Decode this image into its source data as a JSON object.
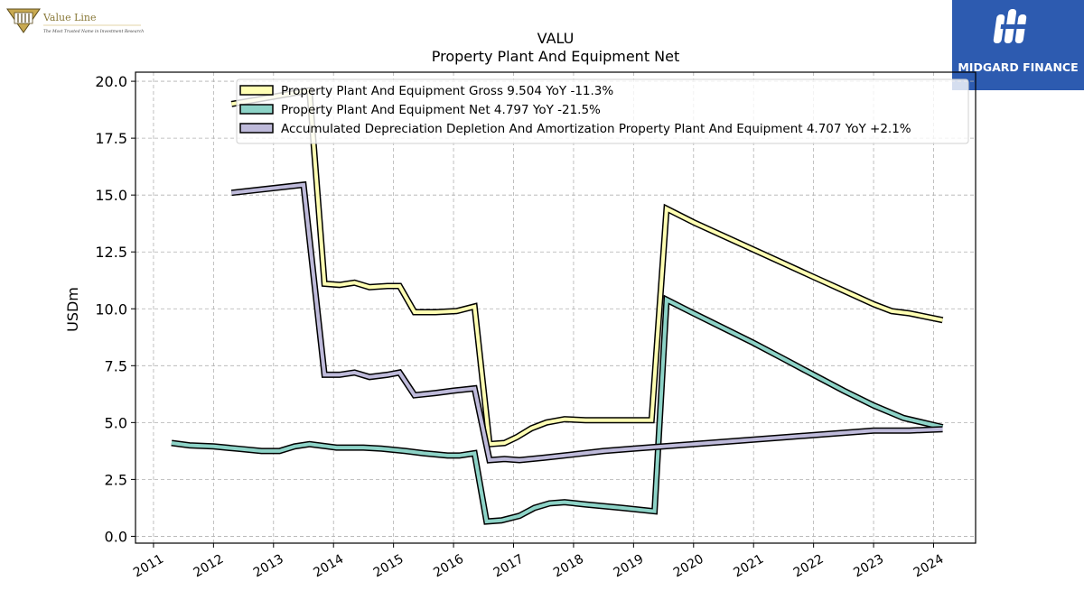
{
  "branding": {
    "valueline_name": "Value Line",
    "valueline_tagline": "The Most Trusted Name in Investment Research",
    "midgard_name": "MIDGARD FINANCE"
  },
  "chart_data": {
    "type": "line",
    "title": "VALU",
    "subtitle": "Property Plant And Equipment Net",
    "ylabel": "USDm",
    "xlabel": "",
    "xlim": [
      2010.7,
      2024.7
    ],
    "ylim": [
      -0.3,
      20.4
    ],
    "yticks": [
      0.0,
      2.5,
      5.0,
      7.5,
      10.0,
      12.5,
      15.0,
      17.5,
      20.0
    ],
    "ytick_labels": [
      "0.0",
      "2.5",
      "5.0",
      "7.5",
      "10.0",
      "12.5",
      "15.0",
      "17.5",
      "20.0"
    ],
    "xticks": [
      2011,
      2012,
      2013,
      2014,
      2015,
      2016,
      2017,
      2018,
      2019,
      2020,
      2021,
      2022,
      2023,
      2024
    ],
    "xtick_labels": [
      "2011",
      "2012",
      "2013",
      "2014",
      "2015",
      "2016",
      "2017",
      "2018",
      "2019",
      "2020",
      "2021",
      "2022",
      "2023",
      "2024"
    ],
    "grid": true,
    "legend_position": "top",
    "series": [
      {
        "name": "Property Plant And Equipment Gross",
        "legend_label": "Property Plant And Equipment Gross  9.504 YoY -11.3%",
        "color": "#ffffb3",
        "points": [
          [
            2012.3,
            19.0
          ],
          [
            2013.6,
            19.6
          ],
          [
            2013.85,
            11.1
          ],
          [
            2014.1,
            11.05
          ],
          [
            2014.35,
            11.15
          ],
          [
            2014.6,
            10.95
          ],
          [
            2014.9,
            11.0
          ],
          [
            2015.1,
            11.0
          ],
          [
            2015.35,
            9.85
          ],
          [
            2015.7,
            9.85
          ],
          [
            2016.05,
            9.9
          ],
          [
            2016.35,
            10.1
          ],
          [
            2016.6,
            4.05
          ],
          [
            2016.85,
            4.1
          ],
          [
            2017.05,
            4.35
          ],
          [
            2017.3,
            4.75
          ],
          [
            2017.55,
            5.0
          ],
          [
            2017.85,
            5.15
          ],
          [
            2018.2,
            5.1
          ],
          [
            2018.8,
            5.1
          ],
          [
            2019.3,
            5.1
          ],
          [
            2019.55,
            14.4
          ],
          [
            2020.0,
            13.8
          ],
          [
            2020.5,
            13.2
          ],
          [
            2021.0,
            12.6
          ],
          [
            2021.5,
            12.0
          ],
          [
            2022.0,
            11.4
          ],
          [
            2022.5,
            10.8
          ],
          [
            2023.0,
            10.2
          ],
          [
            2023.3,
            9.9
          ],
          [
            2023.6,
            9.8
          ],
          [
            2024.15,
            9.504
          ]
        ]
      },
      {
        "name": "Property Plant And Equipment Net",
        "legend_label": "Property Plant And Equipment Net  4.797 YoY -21.5%",
        "color": "#8dd3c7",
        "points": [
          [
            2011.3,
            4.1
          ],
          [
            2011.6,
            4.0
          ],
          [
            2012.0,
            3.95
          ],
          [
            2012.4,
            3.85
          ],
          [
            2012.8,
            3.75
          ],
          [
            2013.1,
            3.75
          ],
          [
            2013.35,
            3.95
          ],
          [
            2013.6,
            4.05
          ],
          [
            2013.9,
            3.95
          ],
          [
            2014.05,
            3.9
          ],
          [
            2014.5,
            3.9
          ],
          [
            2014.8,
            3.85
          ],
          [
            2015.2,
            3.75
          ],
          [
            2015.5,
            3.65
          ],
          [
            2015.9,
            3.55
          ],
          [
            2016.1,
            3.55
          ],
          [
            2016.35,
            3.65
          ],
          [
            2016.55,
            0.65
          ],
          [
            2016.8,
            0.7
          ],
          [
            2017.1,
            0.9
          ],
          [
            2017.35,
            1.25
          ],
          [
            2017.6,
            1.45
          ],
          [
            2017.85,
            1.5
          ],
          [
            2018.2,
            1.4
          ],
          [
            2018.8,
            1.25
          ],
          [
            2019.35,
            1.1
          ],
          [
            2019.55,
            10.4
          ],
          [
            2020.0,
            9.8
          ],
          [
            2020.5,
            9.15
          ],
          [
            2021.0,
            8.5
          ],
          [
            2021.5,
            7.8
          ],
          [
            2022.0,
            7.1
          ],
          [
            2022.5,
            6.4
          ],
          [
            2023.0,
            5.75
          ],
          [
            2023.5,
            5.2
          ],
          [
            2024.15,
            4.797
          ]
        ]
      },
      {
        "name": "Accumulated Depreciation Depletion And Amortization Property Plant And Equipment",
        "legend_label": "Accumulated Depreciation Depletion And Amortization Property Plant And Equipment  4.707 YoY +2.1%",
        "color": "#bebada",
        "points": [
          [
            2012.3,
            15.1
          ],
          [
            2013.5,
            15.45
          ],
          [
            2013.85,
            7.1
          ],
          [
            2014.1,
            7.1
          ],
          [
            2014.35,
            7.2
          ],
          [
            2014.6,
            7.0
          ],
          [
            2014.9,
            7.1
          ],
          [
            2015.1,
            7.2
          ],
          [
            2015.35,
            6.2
          ],
          [
            2015.7,
            6.3
          ],
          [
            2016.0,
            6.4
          ],
          [
            2016.35,
            6.5
          ],
          [
            2016.6,
            3.35
          ],
          [
            2016.85,
            3.4
          ],
          [
            2017.1,
            3.35
          ],
          [
            2017.5,
            3.45
          ],
          [
            2018.0,
            3.6
          ],
          [
            2018.5,
            3.75
          ],
          [
            2019.0,
            3.85
          ],
          [
            2019.5,
            3.95
          ],
          [
            2020.0,
            4.05
          ],
          [
            2020.5,
            4.15
          ],
          [
            2021.0,
            4.25
          ],
          [
            2021.5,
            4.35
          ],
          [
            2022.0,
            4.45
          ],
          [
            2022.5,
            4.55
          ],
          [
            2023.0,
            4.65
          ],
          [
            2023.3,
            4.65
          ],
          [
            2023.6,
            4.65
          ],
          [
            2024.15,
            4.707
          ]
        ]
      }
    ]
  }
}
